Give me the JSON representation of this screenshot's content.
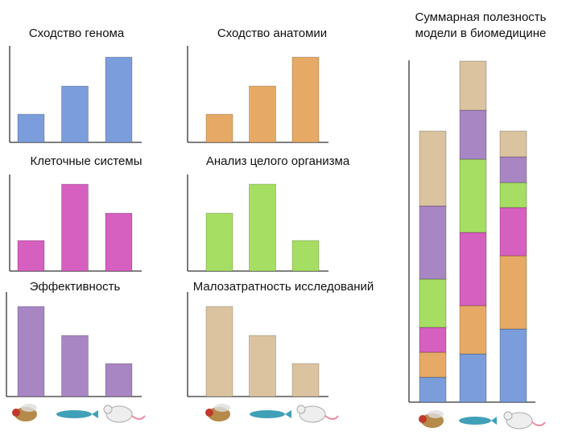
{
  "chart_data": [
    {
      "type": "bar",
      "title": "Сходство генома",
      "values": [
        35,
        70,
        106
      ],
      "color": "#7b9ddb",
      "ylim": [
        0,
        120
      ]
    },
    {
      "type": "bar",
      "title": "Сходство анатомии",
      "values": [
        35,
        70,
        106
      ],
      "color": "#e6aa66",
      "ylim": [
        0,
        120
      ]
    },
    {
      "type": "bar",
      "title": "Клеточные системы",
      "values": [
        38,
        108,
        72
      ],
      "color": "#d660bf",
      "ylim": [
        0,
        120
      ]
    },
    {
      "type": "bar",
      "title": "Анализ целого организма",
      "values": [
        72,
        108,
        38
      ],
      "color": "#a6de63",
      "ylim": [
        0,
        120
      ]
    },
    {
      "type": "bar",
      "title": "Эффективность",
      "values": [
        112,
        76,
        41
      ],
      "color": "#a886c4",
      "ylim": [
        0,
        130
      ]
    },
    {
      "type": "bar",
      "title": "Малозатратность исследований",
      "values": [
        112,
        76,
        41
      ],
      "color": "#dcc3a0",
      "ylim": [
        0,
        130
      ]
    },
    {
      "type": "stacked_bar",
      "title": "Суммарная полезность модели в биомедицине",
      "ylim": [
        0,
        425
      ],
      "series": [
        {
          "color": "#7b9ddb",
          "values": [
            31,
            60,
            91
          ]
        },
        {
          "color": "#e6aa66",
          "values": [
            31,
            60,
            91
          ]
        },
        {
          "color": "#d660bf",
          "values": [
            31,
            91,
            60
          ]
        },
        {
          "color": "#a6de63",
          "values": [
            60,
            91,
            31
          ]
        },
        {
          "color": "#a886c4",
          "values": [
            91,
            61,
            32
          ]
        },
        {
          "color": "#dcc3a0",
          "values": [
            93,
            61,
            32
          ]
        }
      ]
    }
  ]
}
